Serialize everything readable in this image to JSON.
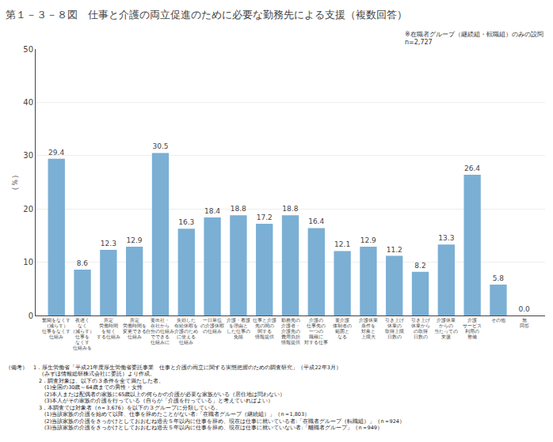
{
  "chart_data": {
    "type": "bar",
    "title": "第１－３－８図　仕事と介護の両立促進のために必要な勤務先による支援（複数回答）",
    "subtitle": "※在職者グループ（継続組・転職組）のみの設問\nn=2,727",
    "ylabel": "（％）",
    "categories": [
      "繁閑をなくす\n（減らす）\n仕事をなくす\n仕組み",
      "夜遅く\nなく\n（減らす）\n仕事を\nなくす\n仕組みを",
      "所定\n労働時間\nを短く\nする仕組み",
      "所定\n労働時間を\n変更できる\n仕組み",
      "要出社・\n在社から\n自分の仕組み\nでできる\n仕組みに",
      "失効した\n有給休暇を\n介護のため\nに使える\n仕組み",
      "一日単位\nの介護休暇\nの仕組み",
      "介護・看護\nを理由と\nした仕事の\n免除",
      "仕事と介護\n先の間の\n関する\n情報提供",
      "勤務先の\n介護者・\n介護先の\n費用負担\n情報提供",
      "介護の\n仕事先の\n一つの\n職種に\n対する仕事",
      "要介護\n体制者の\n範囲と\nなる",
      "介護休業\n条件を\n対象と\n上限大",
      "引き上げ\n休業の\n取得上限\n日数の",
      "引き上げ\n休業から\nの取得\n日数の",
      "介護休業\nからの\n当たっての\n支援",
      "介護\nサービス\n利用の\n整備",
      "その他",
      "無\n回答"
    ],
    "values": [
      29.4,
      8.6,
      12.3,
      12.9,
      30.5,
      16.3,
      18.4,
      18.8,
      17.2,
      18.8,
      16.4,
      12.1,
      12.9,
      11.2,
      8.2,
      13.3,
      26.4,
      5.8,
      0.0
    ],
    "value_labels": [
      "29.4",
      "8.6",
      "12.3",
      "12.9",
      "30.5",
      "16.3",
      "18.4",
      "18.8",
      "17.2",
      "18.8",
      "16.4",
      "12.1",
      "12.9",
      "11.2",
      "8.2",
      "13.3",
      "26.4",
      "5.8",
      "0.0"
    ],
    "data_labels": true,
    "color": "#7bafd4",
    "ylim": [
      0,
      50
    ],
    "yticks": [
      0,
      10,
      20,
      30,
      40,
      50
    ],
    "grid": true,
    "annotations": [
      "（備考）　1．厚生労働省「平成21年度厚生労働省委託事業　仕事と介護の両立に関する実態把握のための調査研究」（平成22年3月）\n　　　　　　（みずほ情報総研株式会社に委託）より作成。\n　　　　　　2．調査対象は、以下の３条件を全て満たした者。\n　　　　　　　(1)全国の30歳～64歳までの男性・女性\n　　　　　　　(2)本人または配偶者の家族に65歳以上の何らかの介護が必要な家族がいる（居住地は問わない）\n　　　　　　　(3)本人がその家族の介護を行っている（自らが「介護を行っている」と考えていればよい）\n　　　　　　3．本調査では対象者（n＝3,676）を以下の３グループに分類している。\n　　　　　　　(1)当該家族の介護を始めて以降、仕事を辞めたことがない者:「在職者グループ（継続組）」（n＝1,803）\n　　　　　　　(2)当該家族の介護をきっかけとしておおむね過去５年以内に仕事を辞め、現在は仕事に就いている者:「在職者グループ（転職組）」（n＝924）\n　　　　　　　(3)当該家族の介護をきっかけとしておおむね過去５年以内に仕事を辞め、現在は仕事に就いていない者:「離職者グループ」（n＝949）"
    ]
  }
}
